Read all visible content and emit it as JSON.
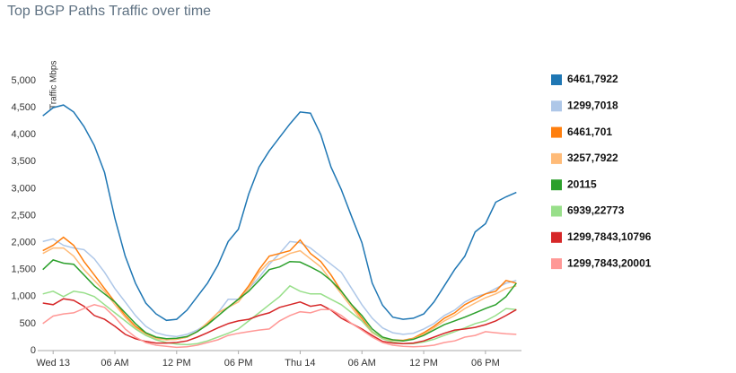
{
  "chart_data": {
    "type": "line",
    "title": "Top BGP Paths Traffic over time",
    "y_label": "Traffic Mbps",
    "legend": "right",
    "grid": false,
    "x": [
      -1,
      0,
      1,
      2,
      3,
      4,
      5,
      6,
      7,
      8,
      9,
      10,
      11,
      12,
      13,
      14,
      15,
      16,
      17,
      18,
      19,
      20,
      21,
      22,
      23,
      24,
      25,
      26,
      27,
      28,
      29,
      30,
      31,
      32,
      33,
      34,
      35,
      36,
      37,
      38,
      39,
      40,
      41,
      42,
      43,
      44,
      45
    ],
    "xlim": [
      -1.5,
      45.5
    ],
    "xticks": [
      {
        "value": 0,
        "label": "Wed 13"
      },
      {
        "value": 6,
        "label": "06 AM"
      },
      {
        "value": 12,
        "label": "12 PM"
      },
      {
        "value": 18,
        "label": "06 PM"
      },
      {
        "value": 24,
        "label": "Thu 14"
      },
      {
        "value": 30,
        "label": "06 AM"
      },
      {
        "value": 36,
        "label": "12 PM"
      },
      {
        "value": 42,
        "label": "06 PM"
      }
    ],
    "ylim": [
      0,
      5200
    ],
    "yticks": [
      0,
      500,
      {
        "value": 1000,
        "label": "1,000"
      },
      {
        "value": 1500,
        "label": "1,500"
      },
      {
        "value": 2000,
        "label": "2,000"
      },
      {
        "value": 2500,
        "label": "2,500"
      },
      {
        "value": 3000,
        "label": "3,000"
      },
      {
        "value": 3500,
        "label": "3,500"
      },
      {
        "value": 4000,
        "label": "4,000"
      },
      {
        "value": 4500,
        "label": "4,500"
      },
      {
        "value": 5000,
        "label": "5,000"
      }
    ],
    "series": [
      {
        "name": "6461,7922",
        "color": "#1f77b4",
        "values": [
          4350,
          4500,
          4550,
          4420,
          4150,
          3800,
          3300,
          2450,
          1750,
          1250,
          880,
          680,
          560,
          580,
          750,
          1000,
          1250,
          1580,
          2020,
          2250,
          2900,
          3400,
          3700,
          3950,
          4200,
          4420,
          4400,
          4000,
          3400,
          2980,
          2480,
          2000,
          1250,
          840,
          620,
          580,
          600,
          680,
          900,
          1200,
          1500,
          1750,
          2200,
          2350,
          2750,
          2850,
          2930
        ]
      },
      {
        "name": "1299,7018",
        "color": "#aec7e8",
        "values": [
          2020,
          2070,
          1950,
          1900,
          1870,
          1700,
          1450,
          1150,
          900,
          650,
          450,
          330,
          280,
          260,
          300,
          380,
          500,
          700,
          950,
          950,
          1150,
          1350,
          1600,
          1800,
          2020,
          2000,
          1900,
          1750,
          1600,
          1450,
          1150,
          850,
          600,
          420,
          330,
          300,
          320,
          400,
          500,
          650,
          750,
          900,
          1000,
          1050,
          1150,
          1250,
          1300
        ]
      },
      {
        "name": "6461,701",
        "color": "#ff7f0e",
        "values": [
          1850,
          1950,
          2100,
          1950,
          1650,
          1400,
          1150,
          900,
          650,
          450,
          320,
          230,
          200,
          210,
          250,
          350,
          500,
          700,
          800,
          950,
          1200,
          1500,
          1750,
          1800,
          1850,
          2050,
          1800,
          1650,
          1400,
          1100,
          850,
          600,
          350,
          230,
          200,
          190,
          230,
          330,
          450,
          600,
          700,
          850,
          950,
          1050,
          1100,
          1300,
          1250
        ]
      },
      {
        "name": "3257,7922",
        "color": "#ffbb78",
        "values": [
          1800,
          1900,
          1900,
          1750,
          1500,
          1300,
          1100,
          850,
          620,
          420,
          300,
          220,
          200,
          210,
          250,
          350,
          520,
          700,
          800,
          900,
          1150,
          1450,
          1650,
          1700,
          1800,
          1850,
          1700,
          1550,
          1300,
          1050,
          800,
          550,
          330,
          220,
          190,
          180,
          220,
          300,
          420,
          550,
          650,
          780,
          880,
          980,
          1050,
          1150,
          1200
        ]
      },
      {
        "name": "20115",
        "color": "#2ca02c",
        "values": [
          1500,
          1680,
          1620,
          1600,
          1400,
          1200,
          1050,
          900,
          700,
          500,
          330,
          250,
          220,
          230,
          260,
          350,
          480,
          640,
          800,
          950,
          1100,
          1300,
          1500,
          1550,
          1650,
          1640,
          1550,
          1450,
          1300,
          1100,
          850,
          650,
          400,
          250,
          200,
          180,
          210,
          280,
          380,
          480,
          550,
          620,
          700,
          780,
          850,
          1000,
          1250
        ]
      },
      {
        "name": "6939,22773",
        "color": "#98df8a",
        "values": [
          1050,
          1100,
          1000,
          1100,
          1070,
          1000,
          850,
          700,
          550,
          400,
          280,
          200,
          150,
          120,
          110,
          130,
          180,
          250,
          320,
          400,
          550,
          700,
          850,
          1000,
          1200,
          1100,
          1050,
          1050,
          950,
          850,
          700,
          550,
          350,
          220,
          160,
          130,
          130,
          160,
          210,
          280,
          350,
          420,
          500,
          550,
          650,
          780,
          760
        ]
      },
      {
        "name": "1299,7843,10796",
        "color": "#d62728",
        "values": [
          880,
          850,
          960,
          930,
          820,
          650,
          580,
          450,
          300,
          220,
          170,
          140,
          140,
          150,
          180,
          250,
          330,
          420,
          500,
          550,
          580,
          650,
          700,
          800,
          850,
          900,
          820,
          850,
          750,
          600,
          500,
          400,
          280,
          170,
          140,
          130,
          140,
          180,
          250,
          320,
          380,
          400,
          430,
          480,
          550,
          650,
          760
        ]
      },
      {
        "name": "1299,7843,20001",
        "color": "#ff9896",
        "values": [
          500,
          640,
          680,
          700,
          780,
          850,
          800,
          620,
          400,
          250,
          150,
          100,
          80,
          60,
          70,
          100,
          150,
          200,
          280,
          320,
          350,
          380,
          400,
          550,
          650,
          720,
          700,
          760,
          760,
          650,
          500,
          380,
          250,
          150,
          100,
          80,
          70,
          80,
          100,
          150,
          180,
          250,
          280,
          350,
          330,
          310,
          300
        ]
      }
    ]
  }
}
